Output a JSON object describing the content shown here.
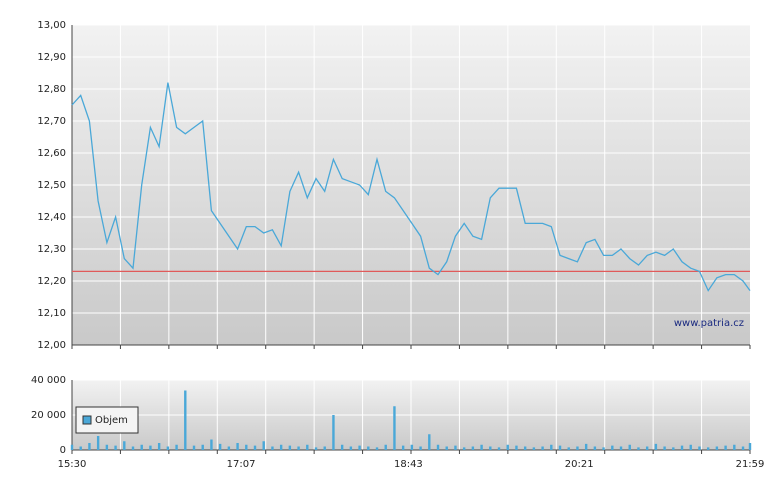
{
  "chart_data": [
    {
      "type": "line",
      "x": [
        "15:30",
        "15:35",
        "15:40",
        "15:45",
        "15:50",
        "15:55",
        "16:00",
        "16:05",
        "16:10",
        "16:15",
        "16:20",
        "16:25",
        "16:30",
        "16:35",
        "16:40",
        "16:45",
        "16:50",
        "16:55",
        "17:00",
        "17:05",
        "17:10",
        "17:15",
        "17:20",
        "17:25",
        "17:30",
        "17:35",
        "17:40",
        "17:45",
        "17:50",
        "17:55",
        "18:00",
        "18:05",
        "18:10",
        "18:15",
        "18:20",
        "18:25",
        "18:30",
        "18:35",
        "18:40",
        "18:45",
        "18:50",
        "18:55",
        "19:00",
        "19:05",
        "19:10",
        "19:15",
        "19:20",
        "19:25",
        "19:30",
        "19:35",
        "19:40",
        "19:45",
        "19:50",
        "19:55",
        "20:00",
        "20:05",
        "20:10",
        "20:15",
        "20:20",
        "20:25",
        "20:30",
        "20:35",
        "20:40",
        "20:45",
        "20:50",
        "20:55",
        "21:00",
        "21:05",
        "21:10",
        "21:15",
        "21:20",
        "21:25",
        "21:30",
        "21:35",
        "21:40",
        "21:45",
        "21:50",
        "21:55",
        "21:59"
      ],
      "values": [
        12.75,
        12.78,
        12.7,
        12.45,
        12.32,
        12.4,
        12.27,
        12.24,
        12.5,
        12.68,
        12.62,
        12.82,
        12.68,
        12.66,
        12.68,
        12.7,
        12.42,
        12.38,
        12.34,
        12.3,
        12.37,
        12.37,
        12.35,
        12.36,
        12.31,
        12.48,
        12.54,
        12.46,
        12.52,
        12.48,
        12.58,
        12.52,
        12.51,
        12.5,
        12.47,
        12.58,
        12.48,
        12.46,
        12.42,
        12.38,
        12.34,
        12.24,
        12.22,
        12.26,
        12.34,
        12.38,
        12.34,
        12.33,
        12.46,
        12.49,
        12.49,
        12.49,
        12.38,
        12.38,
        12.38,
        12.37,
        12.28,
        12.27,
        12.26,
        12.32,
        12.33,
        12.28,
        12.28,
        12.3,
        12.27,
        12.25,
        12.28,
        12.29,
        12.28,
        12.3,
        12.26,
        12.24,
        12.23,
        12.17,
        12.21,
        12.22,
        12.22,
        12.2,
        12.17
      ],
      "color": "#4aa8d8",
      "xlim": [
        "15:30",
        "21:59"
      ],
      "ylim": [
        12.0,
        13.0
      ],
      "yticks": [
        {
          "value": 12.0,
          "label": "12,00"
        },
        {
          "value": 12.1,
          "label": "12,10"
        },
        {
          "value": 12.2,
          "label": "12,20"
        },
        {
          "value": 12.3,
          "label": "12,30"
        },
        {
          "value": 12.4,
          "label": "12,40"
        },
        {
          "value": 12.5,
          "label": "12,50"
        },
        {
          "value": 12.6,
          "label": "12,60"
        },
        {
          "value": 12.7,
          "label": "12,70"
        },
        {
          "value": 12.8,
          "label": "12,80"
        },
        {
          "value": 12.9,
          "label": "12,90"
        },
        {
          "value": 13.0,
          "label": "13,00"
        }
      ],
      "reference_line": {
        "value": 12.23,
        "color": "#e05a5a"
      },
      "grid": true,
      "annotation": "www.patria.cz"
    },
    {
      "type": "bar",
      "x": [
        "15:30",
        "15:35",
        "15:40",
        "15:45",
        "15:50",
        "15:55",
        "16:00",
        "16:05",
        "16:10",
        "16:15",
        "16:20",
        "16:25",
        "16:30",
        "16:35",
        "16:40",
        "16:45",
        "16:50",
        "16:55",
        "17:00",
        "17:05",
        "17:10",
        "17:15",
        "17:20",
        "17:25",
        "17:30",
        "17:35",
        "17:40",
        "17:45",
        "17:50",
        "17:55",
        "18:00",
        "18:05",
        "18:10",
        "18:15",
        "18:20",
        "18:25",
        "18:30",
        "18:35",
        "18:40",
        "18:45",
        "18:50",
        "18:55",
        "19:00",
        "19:05",
        "19:10",
        "19:15",
        "19:20",
        "19:25",
        "19:30",
        "19:35",
        "19:40",
        "19:45",
        "19:50",
        "19:55",
        "20:00",
        "20:05",
        "20:10",
        "20:15",
        "20:20",
        "20:25",
        "20:30",
        "20:35",
        "20:40",
        "20:45",
        "20:50",
        "20:55",
        "21:00",
        "21:05",
        "21:10",
        "21:15",
        "21:20",
        "21:25",
        "21:30",
        "21:35",
        "21:40",
        "21:45",
        "21:50",
        "21:55",
        "21:59"
      ],
      "series": [
        {
          "name": "Objem",
          "color": "#4aa8d8",
          "values": [
            3000,
            2000,
            4000,
            8000,
            3000,
            2500,
            5000,
            2000,
            3000,
            2500,
            4000,
            2000,
            3000,
            34000,
            2500,
            3000,
            6000,
            3500,
            2000,
            4000,
            3000,
            2500,
            5000,
            2000,
            3000,
            2500,
            2000,
            3000,
            1500,
            2000,
            20000,
            3000,
            2000,
            2500,
            2000,
            1500,
            3000,
            25000,
            2500,
            3000,
            2000,
            9000,
            3000,
            2000,
            2500,
            1500,
            2000,
            3000,
            2000,
            1500,
            3000,
            2500,
            2000,
            1500,
            2000,
            3000,
            2500,
            1500,
            2000,
            3500,
            2000,
            1500,
            2500,
            2000,
            3000,
            1500,
            2000,
            3500,
            2000,
            1500,
            2500,
            3000,
            2000,
            1500,
            2000,
            2500,
            3000,
            2000,
            4000
          ]
        }
      ],
      "xlim": [
        "15:30",
        "21:59"
      ],
      "xticks": [
        "15:30",
        "17:07",
        "18:43",
        "20:21",
        "21:59"
      ],
      "ylim": [
        0,
        40000
      ],
      "yticks": [
        0,
        {
          "value": 20000,
          "label": "20 000"
        },
        {
          "value": 40000,
          "label": "40 000"
        }
      ],
      "grid": true,
      "legend": "bottom-left"
    }
  ]
}
